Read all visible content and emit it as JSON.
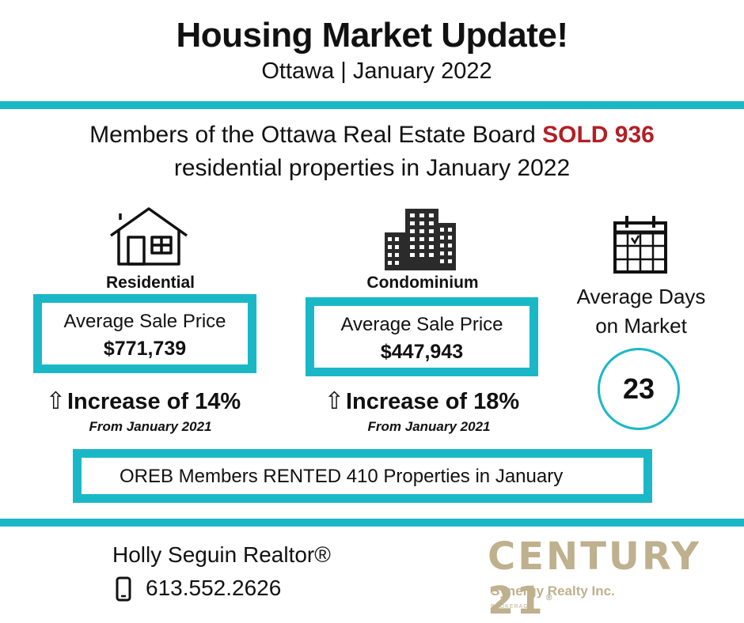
{
  "header": {
    "title": "Housing Market Update!",
    "subtitle": "Ottawa | January 2022"
  },
  "intro": {
    "line1_prefix": "Members of the Ottawa Real Estate Board ",
    "sold_text": "SOLD  936",
    "line2": "residential properties in January 2022"
  },
  "residential": {
    "label": "Residential",
    "box_label": "Average Sale Price",
    "price": "$771,739",
    "increase_arrow": "⇧",
    "increase": "Increase of 14%",
    "from": "From January 2021"
  },
  "condominium": {
    "label": "Condominium",
    "box_label": "Average Sale Price",
    "price": "$447,943",
    "increase_arrow": "⇧",
    "increase": "Increase of 18%",
    "from": "From January 2021"
  },
  "days_on_market": {
    "label_line1": "Average Days",
    "label_line2": "on  Market",
    "value": "23"
  },
  "rented": {
    "text": "OREB Members RENTED 410 Properties in January"
  },
  "footer": {
    "agent": "Holly Seguin Realtor®",
    "phone": "613.552.2626",
    "brand": "CENTURY 21",
    "brand_reg": "®",
    "brokerage_name": "Synergy Realty Inc.",
    "brokerage_tag": "BROKERAGE"
  },
  "colors": {
    "accent": "#1ab8c6",
    "sold": "#b21f24",
    "brand_gold": "#bfb08e",
    "icon_dark": "#2b2b2b"
  },
  "icons": {
    "residential": "house-icon",
    "condominium": "buildings-icon",
    "days": "calendar-icon",
    "phone": "phone-icon"
  }
}
